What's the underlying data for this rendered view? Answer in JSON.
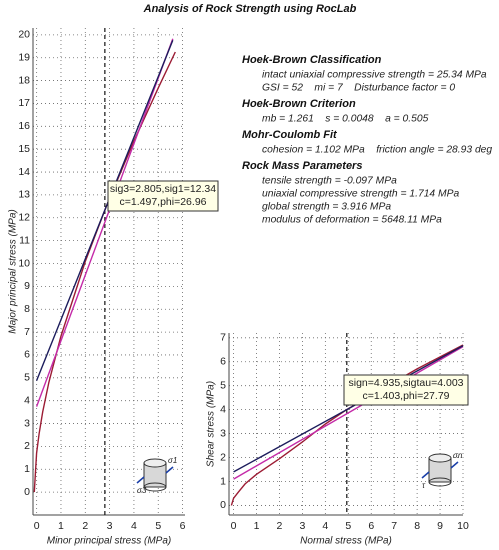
{
  "title": "Analysis of Rock Strength using RocLab",
  "info": [
    {
      "heading": "Hoek-Brown Classification",
      "lines": [
        "intact uniaxial compressive strength = 25.34 MPa",
        "GSI = 52    mi = 7    Disturbance factor = 0"
      ]
    },
    {
      "heading": "Hoek-Brown Criterion",
      "lines": [
        "mb = 1.261    s = 0.0048    a = 0.505"
      ]
    },
    {
      "heading": "Mohr-Coulomb Fit",
      "lines": [
        "cohesion = 1.102 MPa    friction angle = 28.93 deg"
      ]
    },
    {
      "heading": "Rock Mass Parameters",
      "lines": [
        "tensile strength = -0.097 MPa",
        "uniaxial compressive strength = 1.714 MPa",
        "global strength = 3.916 MPa",
        "modulus of deformation = 5648.11 MPa"
      ]
    }
  ],
  "chart_data": [
    {
      "type": "line",
      "x_label": "Minor principal stress (MPa)",
      "y_label": "Major principal stress (MPa)",
      "xlim": [
        -0.15,
        6.1
      ],
      "ylim": [
        -1,
        20.3
      ],
      "xticks": [
        0,
        1,
        2,
        3,
        4,
        5,
        6
      ],
      "yticks": [
        0,
        1,
        2,
        3,
        4,
        5,
        6,
        7,
        8,
        9,
        10,
        11,
        12,
        13,
        14,
        15,
        16,
        17,
        18,
        19,
        20
      ],
      "grid": true,
      "marker_x": 2.805,
      "annotation": [
        "sig3=2.805,sig1=12.34",
        "c=1.497,phi=26.96"
      ],
      "icon_labels": [
        "σ1",
        "σ3"
      ],
      "series": [
        {
          "color": "#9c1c34",
          "x": [
            -0.097,
            0,
            0.1,
            0.25,
            0.5,
            1,
            2,
            2.805,
            3,
            4,
            5,
            5.7
          ],
          "values": [
            0,
            1.71,
            2.55,
            3.51,
            4.79,
            6.83,
            10.09,
            12.34,
            12.85,
            15.35,
            17.67,
            19.25
          ]
        },
        {
          "color": "#c42aa8",
          "x": [
            0,
            5.6
          ],
          "values": [
            3.74,
            19.83
          ]
        },
        {
          "color": "#1c1c5c",
          "x": [
            0,
            5.6
          ],
          "values": [
            4.88,
            19.76
          ]
        }
      ]
    },
    {
      "type": "line",
      "x_label": "Normal stress (MPa)",
      "y_label": "Shear stress (MPa)",
      "xlim": [
        -0.2,
        10
      ],
      "ylim": [
        -0.4,
        7.2
      ],
      "xticks": [
        0,
        1,
        2,
        3,
        4,
        5,
        6,
        7,
        8,
        9,
        10
      ],
      "yticks": [
        0,
        1,
        2,
        3,
        4,
        5,
        6,
        7
      ],
      "grid": true,
      "marker_x": 4.935,
      "annotation": [
        "sign=4.935,sigtau=4.003",
        "c=1.403,phi=27.79"
      ],
      "icon_labels": [
        "σn",
        "τ"
      ],
      "series": [
        {
          "color": "#9c1c34",
          "x": [
            -0.097,
            0,
            0.2,
            0.5,
            1,
            2,
            3,
            4,
            4.935,
            6,
            8,
            10
          ],
          "values": [
            0,
            0.3,
            0.55,
            0.9,
            1.3,
            1.95,
            2.65,
            3.4,
            4.003,
            4.6,
            5.7,
            6.7
          ]
        },
        {
          "color": "#c42aa8",
          "x": [
            0,
            10
          ],
          "values": [
            1.1,
            6.63
          ]
        },
        {
          "color": "#1c1c5c",
          "x": [
            0,
            10
          ],
          "values": [
            1.4,
            6.67
          ]
        }
      ]
    }
  ]
}
